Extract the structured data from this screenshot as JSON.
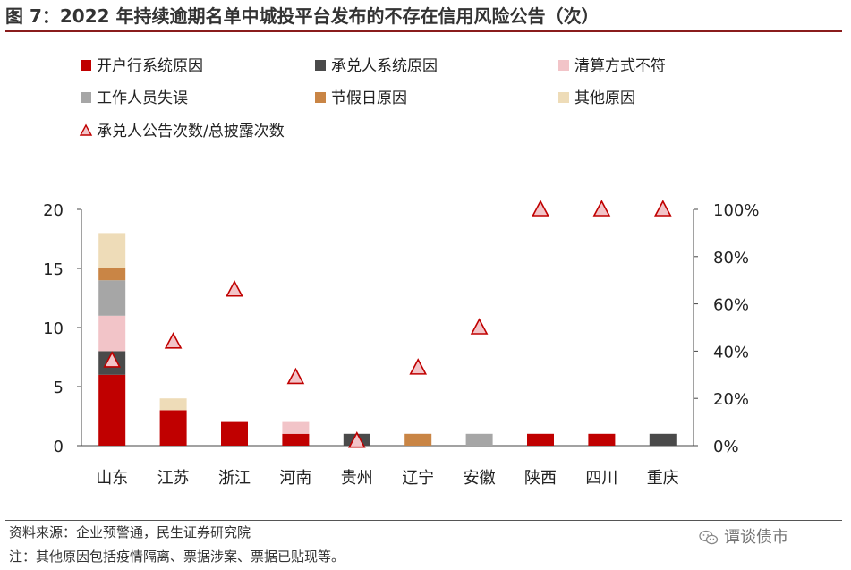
{
  "title": "图 7：2022 年持续逾期名单中城投平台发布的不存在信用风险公告（次）",
  "source": "资料来源：企业预警通，民生证券研究院",
  "note": "注：其他原因包括疫情隔离、票据涉案、票据已贴现等。",
  "watermark": "谭谈债市",
  "watermark_icon": "wechat-icon",
  "chart_data": {
    "type": "bar",
    "stacked": true,
    "categories": [
      "山东",
      "江苏",
      "浙江",
      "河南",
      "贵州",
      "辽宁",
      "安徽",
      "陕西",
      "四川",
      "重庆"
    ],
    "series": [
      {
        "name": "开户行系统原因",
        "color": "#c00000",
        "values": [
          6,
          3,
          2,
          1,
          0,
          0,
          0,
          1,
          1,
          0
        ]
      },
      {
        "name": "承兑人系统原因",
        "color": "#4a4a4a",
        "values": [
          2,
          0,
          0,
          0,
          1,
          0,
          0,
          0,
          0,
          1
        ]
      },
      {
        "name": "清算方式不符",
        "color": "#f2c4c8",
        "values": [
          3,
          0,
          0,
          1,
          0,
          0,
          0,
          0,
          0,
          0
        ]
      },
      {
        "name": "工作人员失误",
        "color": "#a6a6a6",
        "values": [
          3,
          0,
          0,
          0,
          0,
          0,
          1,
          0,
          0,
          0
        ]
      },
      {
        "name": "节假日原因",
        "color": "#c98545",
        "values": [
          1,
          0,
          0,
          0,
          0,
          1,
          0,
          0,
          0,
          0
        ]
      },
      {
        "name": "其他原因",
        "color": "#eedcb8",
        "values": [
          3,
          1,
          0,
          0,
          0,
          0,
          0,
          0,
          0,
          0
        ]
      }
    ],
    "ratio_series": {
      "name": "承兑人公告次数/总披露次数",
      "marker": "triangle",
      "edge_color": "#c00000",
      "fill_color": "#f2c4c8",
      "values": [
        0.36,
        0.44,
        0.66,
        0.29,
        0.02,
        0.33,
        0.5,
        1.0,
        1.0,
        1.0
      ]
    },
    "y_left": {
      "ylim": [
        0,
        20
      ],
      "ticks": [
        "0",
        "5",
        "10",
        "15",
        "20"
      ],
      "tick_values": [
        0,
        5,
        10,
        15,
        20
      ]
    },
    "y_right": {
      "ylim": [
        0,
        1
      ],
      "ticks": [
        "0%",
        "20%",
        "40%",
        "60%",
        "80%",
        "100%"
      ],
      "tick_values": [
        0,
        0.2,
        0.4,
        0.6,
        0.8,
        1.0
      ]
    },
    "grid": false,
    "legend_position": "top"
  }
}
